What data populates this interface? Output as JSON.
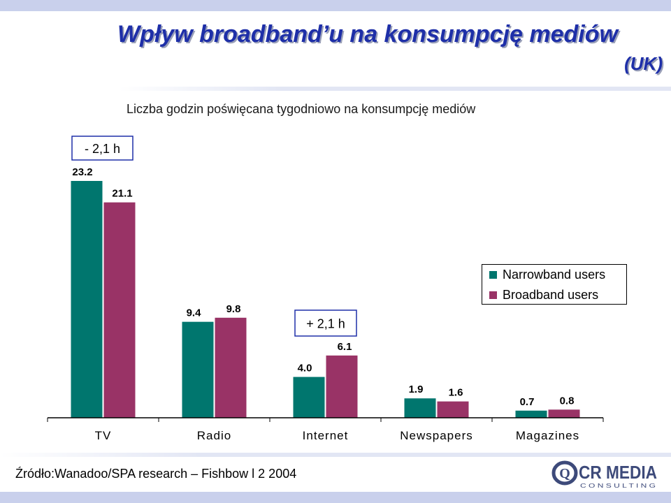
{
  "title": "Wpływ broadband’u na konsumpcję mediów",
  "title_suffix": "(UK)",
  "chart_data": {
    "type": "bar",
    "title": "Liczba godzin poświęcana tygodniowo na konsumpcję mediów",
    "categories": [
      "TV",
      "Radio",
      "Internet",
      "Newspapers",
      "Magazines"
    ],
    "series": [
      {
        "name": "Narrowband users",
        "values": [
          23.2,
          9.4,
          4.0,
          1.9,
          0.7
        ],
        "labels": [
          "23.2",
          "9.4",
          "4.0",
          "1.9",
          "0.7"
        ],
        "color": "#00766e"
      },
      {
        "name": "Broadband users",
        "values": [
          21.1,
          9.8,
          6.1,
          1.6,
          0.8
        ],
        "labels": [
          "21.1",
          "9.8",
          "6.1",
          "1.6",
          "0.8"
        ],
        "color": "#993366"
      }
    ],
    "ylim": [
      0,
      25
    ],
    "legend": "right",
    "grid": false,
    "annotations": [
      {
        "category": "TV",
        "text": "- 2,1 h"
      },
      {
        "category": "Internet",
        "text": "+ 2,1 h"
      }
    ]
  },
  "source": "Źródło:Wanadoo/SPA research – Fishbow l 2 2004",
  "logo": {
    "text_main": "CR MEDIA",
    "text_sub": "C O N S U L T I N G",
    "letter": "Q"
  }
}
